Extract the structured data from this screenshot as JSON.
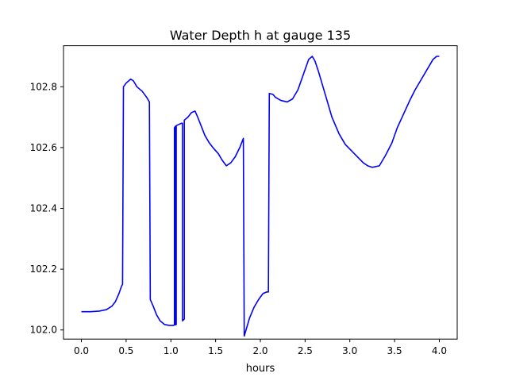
{
  "chart_data": {
    "type": "line",
    "title": "Water Depth h at gauge 135",
    "xlabel": "hours",
    "ylabel": "",
    "xlim": [
      -0.2,
      4.2
    ],
    "ylim": [
      101.97,
      102.935
    ],
    "xticks": [
      0.0,
      0.5,
      1.0,
      1.5,
      2.0,
      2.5,
      3.0,
      3.5,
      4.0
    ],
    "xtick_labels": [
      "0.0",
      "0.5",
      "1.0",
      "1.5",
      "2.0",
      "2.5",
      "3.0",
      "3.5",
      "4.0"
    ],
    "yticks": [
      102.0,
      102.2,
      102.4,
      102.6,
      102.8
    ],
    "ytick_labels": [
      "102.0",
      "102.2",
      "102.4",
      "102.6",
      "102.8"
    ],
    "grid": false,
    "series": [
      {
        "name": "",
        "color": "#0000ff",
        "x": [
          0.0,
          0.1,
          0.2,
          0.28,
          0.34,
          0.38,
          0.42,
          0.45,
          0.46,
          0.47,
          0.5,
          0.55,
          0.58,
          0.62,
          0.68,
          0.73,
          0.76,
          0.77,
          0.8,
          0.84,
          0.88,
          0.93,
          0.98,
          1.03,
          1.04,
          1.04,
          1.05,
          1.05,
          1.06,
          1.06,
          1.08,
          1.12,
          1.13,
          1.13,
          1.15,
          1.15,
          1.19,
          1.23,
          1.27,
          1.3,
          1.34,
          1.38,
          1.43,
          1.47,
          1.53,
          1.57,
          1.62,
          1.67,
          1.72,
          1.77,
          1.81,
          1.82,
          1.84,
          1.88,
          1.93,
          1.98,
          2.03,
          2.07,
          2.09,
          2.1,
          2.14,
          2.17,
          2.23,
          2.3,
          2.36,
          2.42,
          2.48,
          2.54,
          2.58,
          2.61,
          2.65,
          2.7,
          2.75,
          2.8,
          2.88,
          2.95,
          3.0,
          3.05,
          3.1,
          3.15,
          3.2,
          3.25,
          3.33,
          3.4,
          3.47,
          3.53,
          3.6,
          3.67,
          3.73,
          3.8,
          3.87,
          3.93,
          3.97,
          4.0
        ],
        "y": [
          102.06,
          102.06,
          102.062,
          102.067,
          102.078,
          102.093,
          102.12,
          102.145,
          102.15,
          102.8,
          102.812,
          102.825,
          102.82,
          102.8,
          102.785,
          102.765,
          102.75,
          102.1,
          102.08,
          102.05,
          102.03,
          102.018,
          102.015,
          102.015,
          102.017,
          102.665,
          102.67,
          102.017,
          102.018,
          102.672,
          102.675,
          102.68,
          102.68,
          102.03,
          102.036,
          102.69,
          102.7,
          102.715,
          102.72,
          102.7,
          102.67,
          102.64,
          102.615,
          102.6,
          102.58,
          102.56,
          102.54,
          102.55,
          102.57,
          102.6,
          102.63,
          101.98,
          102.0,
          102.04,
          102.075,
          102.1,
          102.12,
          102.125,
          102.125,
          102.778,
          102.775,
          102.765,
          102.755,
          102.75,
          102.76,
          102.79,
          102.84,
          102.89,
          102.9,
          102.885,
          102.85,
          102.8,
          102.75,
          102.7,
          102.645,
          102.61,
          102.595,
          102.58,
          102.565,
          102.55,
          102.54,
          102.535,
          102.54,
          102.575,
          102.615,
          102.665,
          102.71,
          102.755,
          102.79,
          102.825,
          102.86,
          102.89,
          102.9,
          102.9
        ]
      }
    ]
  }
}
